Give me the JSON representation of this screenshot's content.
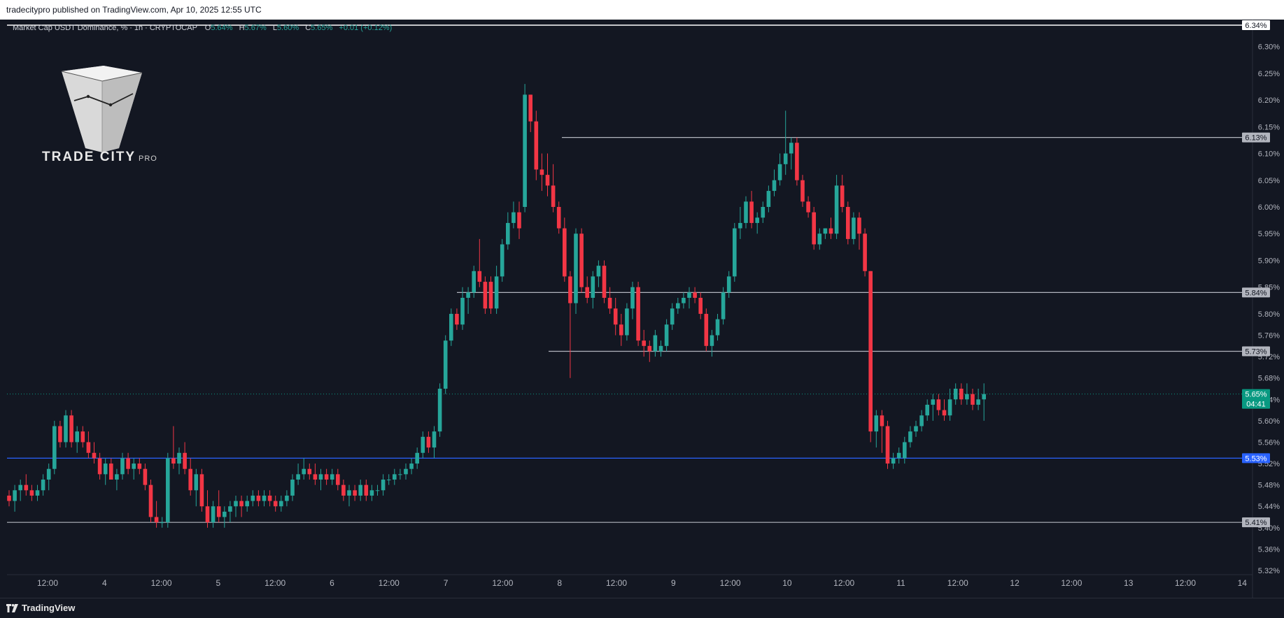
{
  "header": {
    "publisher_line": "tradecitypro published on TradingView.com, Apr 10, 2025 12:55 UTC"
  },
  "legend": {
    "symbol": "Market Cap USDT Dominance, %",
    "interval": "1h",
    "exchange": "CRYPTOCAP",
    "open_label": "O",
    "open": "5.64%",
    "high_label": "H",
    "high": "5.67%",
    "low_label": "L",
    "low": "5.60%",
    "close_label": "C",
    "close": "5.65%",
    "change": "+0.01 (+0.12%)"
  },
  "branding": {
    "name": "TRADE CITY",
    "suffix": "PRO"
  },
  "footer": {
    "platform": "TradingView"
  },
  "colors": {
    "background": "#131722",
    "up": "#26a69a",
    "down": "#f23645",
    "level_line": "#b2b5be",
    "support_line": "#2962ff",
    "price_tag": "#089981"
  },
  "chart_data": {
    "type": "candlestick",
    "title": "Market Cap USDT Dominance, %",
    "interval": "1h",
    "ylim": [
      5.32,
      6.34
    ],
    "x_ticks": [
      "12:00",
      "4",
      "12:00",
      "5",
      "12:00",
      "6",
      "12:00",
      "7",
      "12:00",
      "8",
      "12:00",
      "9",
      "12:00",
      "10",
      "12:00",
      "11",
      "12:00",
      "12",
      "12:00",
      "13",
      "12:00",
      "14"
    ],
    "y_ticks": [
      "6.30%",
      "6.25%",
      "6.20%",
      "6.15%",
      "6.10%",
      "6.05%",
      "6.00%",
      "5.95%",
      "5.90%",
      "5.85%",
      "5.80%",
      "5.76%",
      "5.72%",
      "5.68%",
      "5.64%",
      "5.60%",
      "5.56%",
      "5.52%",
      "5.48%",
      "5.44%",
      "5.40%",
      "5.36%",
      "5.32%"
    ],
    "horizontal_levels": [
      {
        "value": 6.34,
        "label": "6.34%",
        "style": "top"
      },
      {
        "value": 6.13,
        "label": "6.13%",
        "style": "level"
      },
      {
        "value": 5.84,
        "label": "5.84%",
        "style": "level"
      },
      {
        "value": 5.73,
        "label": "5.73%",
        "style": "level"
      },
      {
        "value": 5.53,
        "label": "5.53%",
        "style": "support"
      },
      {
        "value": 5.41,
        "label": "5.41%",
        "style": "level"
      }
    ],
    "current_price": {
      "value": 5.65,
      "label": "5.65%",
      "countdown": "04:41"
    },
    "candles": [
      [
        5.46,
        5.47,
        5.44,
        5.45
      ],
      [
        5.45,
        5.48,
        5.43,
        5.47
      ],
      [
        5.47,
        5.49,
        5.45,
        5.48
      ],
      [
        5.48,
        5.5,
        5.46,
        5.47
      ],
      [
        5.47,
        5.48,
        5.45,
        5.46
      ],
      [
        5.46,
        5.48,
        5.45,
        5.47
      ],
      [
        5.47,
        5.5,
        5.46,
        5.49
      ],
      [
        5.49,
        5.52,
        5.47,
        5.51
      ],
      [
        5.51,
        5.6,
        5.5,
        5.59
      ],
      [
        5.59,
        5.6,
        5.55,
        5.56
      ],
      [
        5.56,
        5.62,
        5.55,
        5.61
      ],
      [
        5.61,
        5.62,
        5.55,
        5.56
      ],
      [
        5.56,
        5.59,
        5.54,
        5.58
      ],
      [
        5.58,
        5.59,
        5.55,
        5.56
      ],
      [
        5.56,
        5.58,
        5.53,
        5.54
      ],
      [
        5.54,
        5.56,
        5.52,
        5.53
      ],
      [
        5.53,
        5.54,
        5.49,
        5.5
      ],
      [
        5.5,
        5.53,
        5.48,
        5.52
      ],
      [
        5.52,
        5.53,
        5.49,
        5.49
      ],
      [
        5.49,
        5.51,
        5.47,
        5.5
      ],
      [
        5.5,
        5.54,
        5.49,
        5.53
      ],
      [
        5.53,
        5.54,
        5.5,
        5.51
      ],
      [
        5.51,
        5.53,
        5.49,
        5.52
      ],
      [
        5.52,
        5.53,
        5.5,
        5.51
      ],
      [
        5.51,
        5.52,
        5.47,
        5.48
      ],
      [
        5.48,
        5.49,
        5.41,
        5.42
      ],
      [
        5.42,
        5.45,
        5.4,
        5.41
      ],
      [
        5.41,
        5.42,
        5.4,
        5.41
      ],
      [
        5.41,
        5.54,
        5.4,
        5.53
      ],
      [
        5.53,
        5.59,
        5.51,
        5.52
      ],
      [
        5.52,
        5.55,
        5.5,
        5.54
      ],
      [
        5.54,
        5.56,
        5.5,
        5.51
      ],
      [
        5.51,
        5.53,
        5.46,
        5.47
      ],
      [
        5.47,
        5.51,
        5.44,
        5.5
      ],
      [
        5.5,
        5.51,
        5.43,
        5.44
      ],
      [
        5.44,
        5.47,
        5.4,
        5.41
      ],
      [
        5.41,
        5.45,
        5.4,
        5.44
      ],
      [
        5.44,
        5.47,
        5.41,
        5.42
      ],
      [
        5.42,
        5.44,
        5.4,
        5.43
      ],
      [
        5.43,
        5.45,
        5.41,
        5.44
      ],
      [
        5.44,
        5.46,
        5.42,
        5.45
      ],
      [
        5.45,
        5.46,
        5.42,
        5.44
      ],
      [
        5.44,
        5.46,
        5.43,
        5.45
      ],
      [
        5.45,
        5.47,
        5.44,
        5.46
      ],
      [
        5.46,
        5.47,
        5.44,
        5.45
      ],
      [
        5.45,
        5.47,
        5.44,
        5.46
      ],
      [
        5.46,
        5.47,
        5.44,
        5.45
      ],
      [
        5.45,
        5.46,
        5.43,
        5.44
      ],
      [
        5.44,
        5.46,
        5.43,
        5.45
      ],
      [
        5.45,
        5.47,
        5.44,
        5.46
      ],
      [
        5.46,
        5.5,
        5.45,
        5.49
      ],
      [
        5.49,
        5.52,
        5.48,
        5.5
      ],
      [
        5.5,
        5.53,
        5.49,
        5.51
      ],
      [
        5.51,
        5.52,
        5.49,
        5.5
      ],
      [
        5.5,
        5.52,
        5.48,
        5.49
      ],
      [
        5.49,
        5.51,
        5.47,
        5.5
      ],
      [
        5.5,
        5.51,
        5.48,
        5.49
      ],
      [
        5.49,
        5.51,
        5.48,
        5.5
      ],
      [
        5.5,
        5.51,
        5.47,
        5.48
      ],
      [
        5.48,
        5.49,
        5.45,
        5.46
      ],
      [
        5.46,
        5.48,
        5.44,
        5.47
      ],
      [
        5.47,
        5.48,
        5.45,
        5.46
      ],
      [
        5.46,
        5.49,
        5.45,
        5.48
      ],
      [
        5.48,
        5.49,
        5.45,
        5.46
      ],
      [
        5.46,
        5.48,
        5.45,
        5.47
      ],
      [
        5.47,
        5.48,
        5.46,
        5.47
      ],
      [
        5.47,
        5.5,
        5.46,
        5.49
      ],
      [
        5.49,
        5.5,
        5.48,
        5.49
      ],
      [
        5.49,
        5.51,
        5.48,
        5.5
      ],
      [
        5.5,
        5.51,
        5.49,
        5.5
      ],
      [
        5.5,
        5.52,
        5.49,
        5.51
      ],
      [
        5.51,
        5.53,
        5.5,
        5.52
      ],
      [
        5.52,
        5.55,
        5.51,
        5.54
      ],
      [
        5.54,
        5.58,
        5.53,
        5.57
      ],
      [
        5.57,
        5.58,
        5.54,
        5.55
      ],
      [
        5.55,
        5.59,
        5.53,
        5.58
      ],
      [
        5.58,
        5.67,
        5.57,
        5.66
      ],
      [
        5.66,
        5.76,
        5.65,
        5.75
      ],
      [
        5.75,
        5.81,
        5.74,
        5.8
      ],
      [
        5.8,
        5.81,
        5.77,
        5.78
      ],
      [
        5.78,
        5.85,
        5.77,
        5.83
      ],
      [
        5.83,
        5.85,
        5.8,
        5.84
      ],
      [
        5.84,
        5.89,
        5.83,
        5.88
      ],
      [
        5.88,
        5.94,
        5.85,
        5.86
      ],
      [
        5.86,
        5.87,
        5.8,
        5.81
      ],
      [
        5.86,
        5.87,
        5.8,
        5.81
      ],
      [
        5.81,
        5.89,
        5.8,
        5.87
      ],
      [
        5.87,
        5.94,
        5.86,
        5.93
      ],
      [
        5.93,
        5.99,
        5.92,
        5.97
      ],
      [
        5.97,
        6.01,
        5.96,
        5.99
      ],
      [
        5.99,
        6.01,
        5.94,
        5.96
      ],
      [
        6.0,
        6.23,
        5.99,
        6.21
      ],
      [
        6.21,
        6.21,
        6.14,
        6.16
      ],
      [
        6.16,
        6.18,
        6.05,
        6.07
      ],
      [
        6.07,
        6.1,
        6.03,
        6.06
      ],
      [
        6.06,
        6.1,
        6.02,
        6.04
      ],
      [
        6.04,
        6.08,
        5.99,
        6.0
      ],
      [
        6.0,
        6.01,
        5.95,
        5.96
      ],
      [
        5.96,
        5.98,
        5.86,
        5.87
      ],
      [
        5.87,
        5.88,
        5.68,
        5.82
      ],
      [
        5.82,
        5.96,
        5.8,
        5.95
      ],
      [
        5.95,
        5.96,
        5.84,
        5.85
      ],
      [
        5.85,
        5.87,
        5.82,
        5.83
      ],
      [
        5.83,
        5.88,
        5.81,
        5.87
      ],
      [
        5.87,
        5.9,
        5.85,
        5.89
      ],
      [
        5.89,
        5.9,
        5.82,
        5.83
      ],
      [
        5.83,
        5.85,
        5.8,
        5.81
      ],
      [
        5.81,
        5.83,
        5.76,
        5.78
      ],
      [
        5.78,
        5.8,
        5.74,
        5.76
      ],
      [
        5.76,
        5.82,
        5.75,
        5.81
      ],
      [
        5.81,
        5.86,
        5.79,
        5.85
      ],
      [
        5.85,
        5.86,
        5.74,
        5.75
      ],
      [
        5.75,
        5.77,
        5.72,
        5.74
      ],
      [
        5.74,
        5.75,
        5.71,
        5.73
      ],
      [
        5.73,
        5.77,
        5.72,
        5.76
      ],
      [
        5.73,
        5.75,
        5.72,
        5.74
      ],
      [
        5.74,
        5.79,
        5.73,
        5.78
      ],
      [
        5.78,
        5.82,
        5.77,
        5.81
      ],
      [
        5.81,
        5.83,
        5.8,
        5.82
      ],
      [
        5.82,
        5.84,
        5.81,
        5.83
      ],
      [
        5.83,
        5.85,
        5.81,
        5.84
      ],
      [
        5.84,
        5.85,
        5.82,
        5.83
      ],
      [
        5.83,
        5.84,
        5.79,
        5.8
      ],
      [
        5.8,
        5.81,
        5.73,
        5.74
      ],
      [
        5.74,
        5.77,
        5.72,
        5.76
      ],
      [
        5.76,
        5.8,
        5.75,
        5.79
      ],
      [
        5.79,
        5.85,
        5.78,
        5.84
      ],
      [
        5.84,
        5.88,
        5.83,
        5.87
      ],
      [
        5.87,
        5.97,
        5.86,
        5.96
      ],
      [
        5.96,
        6.0,
        5.94,
        5.97
      ],
      [
        5.97,
        6.02,
        5.96,
        6.01
      ],
      [
        6.01,
        6.03,
        5.96,
        5.97
      ],
      [
        5.97,
        5.99,
        5.95,
        5.98
      ],
      [
        5.98,
        6.01,
        5.97,
        6.0
      ],
      [
        6.0,
        6.04,
        5.99,
        6.03
      ],
      [
        6.03,
        6.07,
        6.02,
        6.05
      ],
      [
        6.05,
        6.1,
        6.04,
        6.08
      ],
      [
        6.08,
        6.18,
        6.06,
        6.1
      ],
      [
        6.1,
        6.13,
        6.07,
        6.12
      ],
      [
        6.12,
        6.13,
        6.04,
        6.05
      ],
      [
        6.05,
        6.06,
        6.0,
        6.01
      ],
      [
        6.01,
        6.02,
        5.98,
        5.99
      ],
      [
        5.99,
        6.0,
        5.92,
        5.93
      ],
      [
        5.93,
        5.96,
        5.92,
        5.95
      ],
      [
        5.95,
        5.96,
        5.94,
        5.96
      ],
      [
        5.96,
        5.98,
        5.94,
        5.95
      ],
      [
        5.95,
        6.06,
        5.94,
        6.04
      ],
      [
        6.04,
        6.06,
        5.99,
        6.0
      ],
      [
        6.0,
        6.01,
        5.93,
        5.94
      ],
      [
        5.94,
        5.99,
        5.93,
        5.98
      ],
      [
        5.98,
        5.99,
        5.92,
        5.95
      ],
      [
        5.95,
        5.96,
        5.87,
        5.88
      ],
      [
        5.88,
        5.88,
        5.56,
        5.58
      ],
      [
        5.58,
        5.62,
        5.55,
        5.61
      ],
      [
        5.61,
        5.62,
        5.54,
        5.59
      ],
      [
        5.59,
        5.6,
        5.51,
        5.52
      ],
      [
        5.52,
        5.54,
        5.51,
        5.53
      ],
      [
        5.53,
        5.55,
        5.52,
        5.54
      ],
      [
        5.53,
        5.57,
        5.52,
        5.56
      ],
      [
        5.56,
        5.59,
        5.55,
        5.58
      ],
      [
        5.58,
        5.6,
        5.57,
        5.59
      ],
      [
        5.59,
        5.62,
        5.58,
        5.61
      ],
      [
        5.61,
        5.64,
        5.6,
        5.63
      ],
      [
        5.63,
        5.65,
        5.6,
        5.64
      ],
      [
        5.64,
        5.65,
        5.61,
        5.62
      ],
      [
        5.62,
        5.64,
        5.6,
        5.61
      ],
      [
        5.61,
        5.66,
        5.6,
        5.64
      ],
      [
        5.64,
        5.67,
        5.63,
        5.66
      ],
      [
        5.66,
        5.67,
        5.63,
        5.64
      ],
      [
        5.64,
        5.67,
        5.63,
        5.65
      ],
      [
        5.65,
        5.66,
        5.62,
        5.63
      ],
      [
        5.63,
        5.66,
        5.62,
        5.64
      ],
      [
        5.64,
        5.67,
        5.6,
        5.65
      ]
    ]
  }
}
